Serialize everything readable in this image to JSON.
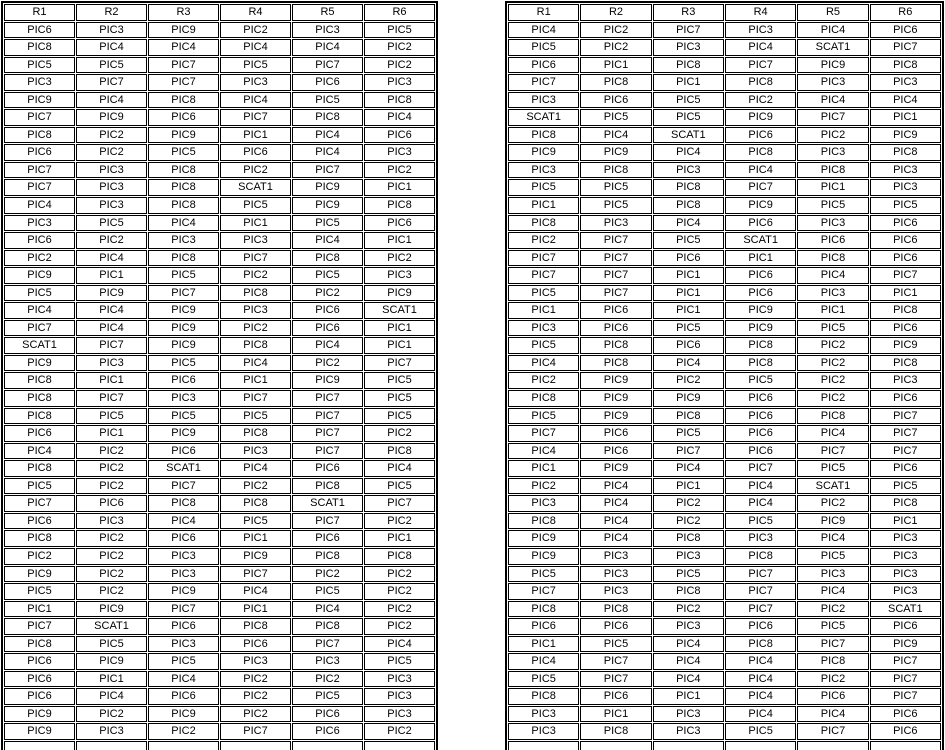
{
  "app": {
    "background_color": "#ffffff",
    "grid_border_color": "#000000",
    "text_color": "#000000"
  },
  "tables": [
    {
      "id": "left-grid",
      "headers": [
        "R1",
        "R2",
        "R3",
        "R4",
        "R5",
        "R6"
      ],
      "rows": [
        [
          "PIC6",
          "PIC3",
          "PIC9",
          "PIC2",
          "PIC3",
          "PIC5"
        ],
        [
          "PIC8",
          "PIC4",
          "PIC4",
          "PIC4",
          "PIC4",
          "PIC2"
        ],
        [
          "PIC5",
          "PIC5",
          "PIC7",
          "PIC5",
          "PIC7",
          "PIC2"
        ],
        [
          "PIC3",
          "PIC7",
          "PIC7",
          "PIC3",
          "PIC6",
          "PIC3"
        ],
        [
          "PIC9",
          "PIC4",
          "PIC8",
          "PIC4",
          "PIC5",
          "PIC8"
        ],
        [
          "PIC7",
          "PIC9",
          "PIC6",
          "PIC7",
          "PIC8",
          "PIC4"
        ],
        [
          "PIC8",
          "PIC2",
          "PIC9",
          "PIC1",
          "PIC4",
          "PIC6"
        ],
        [
          "PIC6",
          "PIC2",
          "PIC5",
          "PIC6",
          "PIC4",
          "PIC3"
        ],
        [
          "PIC7",
          "PIC3",
          "PIC8",
          "PIC2",
          "PIC7",
          "PIC2"
        ],
        [
          "PIC7",
          "PIC3",
          "PIC8",
          "SCAT1",
          "PIC9",
          "PIC1"
        ],
        [
          "PIC4",
          "PIC3",
          "PIC8",
          "PIC5",
          "PIC9",
          "PIC8"
        ],
        [
          "PIC3",
          "PIC5",
          "PIC4",
          "PIC1",
          "PIC5",
          "PIC6"
        ],
        [
          "PIC6",
          "PIC2",
          "PIC3",
          "PIC3",
          "PIC4",
          "PIC1"
        ],
        [
          "PIC2",
          "PIC4",
          "PIC8",
          "PIC7",
          "PIC8",
          "PIC2"
        ],
        [
          "PIC9",
          "PIC1",
          "PIC5",
          "PIC2",
          "PIC5",
          "PIC3"
        ],
        [
          "PIC5",
          "PIC9",
          "PIC7",
          "PIC8",
          "PIC2",
          "PIC9"
        ],
        [
          "PIC4",
          "PIC4",
          "PIC9",
          "PIC3",
          "PIC6",
          "SCAT1"
        ],
        [
          "PIC7",
          "PIC4",
          "PIC9",
          "PIC2",
          "PIC6",
          "PIC1"
        ],
        [
          "SCAT1",
          "PIC7",
          "PIC9",
          "PIC8",
          "PIC4",
          "PIC1"
        ],
        [
          "PIC9",
          "PIC3",
          "PIC5",
          "PIC4",
          "PIC2",
          "PIC7"
        ],
        [
          "PIC8",
          "PIC1",
          "PIC6",
          "PIC1",
          "PIC9",
          "PIC5"
        ],
        [
          "PIC8",
          "PIC7",
          "PIC3",
          "PIC7",
          "PIC7",
          "PIC5"
        ],
        [
          "PIC8",
          "PIC5",
          "PIC5",
          "PIC5",
          "PIC7",
          "PIC5"
        ],
        [
          "PIC6",
          "PIC1",
          "PIC9",
          "PIC8",
          "PIC7",
          "PIC2"
        ],
        [
          "PIC4",
          "PIC2",
          "PIC6",
          "PIC3",
          "PIC7",
          "PIC8"
        ],
        [
          "PIC8",
          "PIC2",
          "SCAT1",
          "PIC4",
          "PIC6",
          "PIC4"
        ],
        [
          "PIC5",
          "PIC2",
          "PIC7",
          "PIC2",
          "PIC8",
          "PIC5"
        ],
        [
          "PIC7",
          "PIC6",
          "PIC8",
          "PIC8",
          "SCAT1",
          "PIC7"
        ],
        [
          "PIC6",
          "PIC3",
          "PIC4",
          "PIC5",
          "PIC7",
          "PIC2"
        ],
        [
          "PIC8",
          "PIC2",
          "PIC6",
          "PIC1",
          "PIC6",
          "PIC1"
        ],
        [
          "PIC2",
          "PIC2",
          "PIC3",
          "PIC9",
          "PIC8",
          "PIC8"
        ],
        [
          "PIC9",
          "PIC2",
          "PIC3",
          "PIC7",
          "PIC2",
          "PIC2"
        ],
        [
          "PIC5",
          "PIC2",
          "PIC9",
          "PIC4",
          "PIC5",
          "PIC2"
        ],
        [
          "PIC1",
          "PIC9",
          "PIC7",
          "PIC1",
          "PIC4",
          "PIC2"
        ],
        [
          "PIC7",
          "SCAT1",
          "PIC6",
          "PIC8",
          "PIC8",
          "PIC2"
        ],
        [
          "PIC8",
          "PIC5",
          "PIC3",
          "PIC6",
          "PIC7",
          "PIC4"
        ],
        [
          "PIC6",
          "PIC9",
          "PIC5",
          "PIC3",
          "PIC3",
          "PIC5"
        ],
        [
          "PIC6",
          "PIC1",
          "PIC4",
          "PIC2",
          "PIC2",
          "PIC3"
        ],
        [
          "PIC6",
          "PIC4",
          "PIC6",
          "PIC2",
          "PIC5",
          "PIC3"
        ],
        [
          "PIC9",
          "PIC2",
          "PIC9",
          "PIC2",
          "PIC6",
          "PIC3"
        ],
        [
          "PIC9",
          "PIC3",
          "PIC2",
          "PIC7",
          "PIC6",
          "PIC2"
        ]
      ],
      "partial_next_row_visible": true
    },
    {
      "id": "right-grid",
      "headers": [
        "R1",
        "R2",
        "R3",
        "R4",
        "R5",
        "R6"
      ],
      "rows": [
        [
          "PIC4",
          "PIC2",
          "PIC7",
          "PIC3",
          "PIC4",
          "PIC6"
        ],
        [
          "PIC5",
          "PIC2",
          "PIC3",
          "PIC4",
          "SCAT1",
          "PIC7"
        ],
        [
          "PIC6",
          "PIC1",
          "PIC8",
          "PIC7",
          "PIC9",
          "PIC8"
        ],
        [
          "PIC7",
          "PIC8",
          "PIC1",
          "PIC8",
          "PIC3",
          "PIC3"
        ],
        [
          "PIC3",
          "PIC6",
          "PIC5",
          "PIC2",
          "PIC4",
          "PIC4"
        ],
        [
          "SCAT1",
          "PIC5",
          "PIC5",
          "PIC9",
          "PIC7",
          "PIC1"
        ],
        [
          "PIC8",
          "PIC4",
          "SCAT1",
          "PIC6",
          "PIC2",
          "PIC9"
        ],
        [
          "PIC9",
          "PIC9",
          "PIC4",
          "PIC8",
          "PIC3",
          "PIC8"
        ],
        [
          "PIC3",
          "PIC8",
          "PIC3",
          "PIC4",
          "PIC8",
          "PIC3"
        ],
        [
          "PIC5",
          "PIC5",
          "PIC8",
          "PIC7",
          "PIC1",
          "PIC3"
        ],
        [
          "PIC1",
          "PIC5",
          "PIC8",
          "PIC9",
          "PIC5",
          "PIC5"
        ],
        [
          "PIC8",
          "PIC3",
          "PIC4",
          "PIC6",
          "PIC3",
          "PIC6"
        ],
        [
          "PIC2",
          "PIC7",
          "PIC5",
          "SCAT1",
          "PIC6",
          "PIC6"
        ],
        [
          "PIC7",
          "PIC7",
          "PIC6",
          "PIC1",
          "PIC8",
          "PIC6"
        ],
        [
          "PIC7",
          "PIC7",
          "PIC1",
          "PIC6",
          "PIC4",
          "PIC7"
        ],
        [
          "PIC5",
          "PIC7",
          "PIC1",
          "PIC6",
          "PIC3",
          "PIC1"
        ],
        [
          "PIC1",
          "PIC6",
          "PIC1",
          "PIC9",
          "PIC1",
          "PIC8"
        ],
        [
          "PIC3",
          "PIC6",
          "PIC5",
          "PIC9",
          "PIC5",
          "PIC6"
        ],
        [
          "PIC5",
          "PIC8",
          "PIC6",
          "PIC8",
          "PIC2",
          "PIC9"
        ],
        [
          "PIC4",
          "PIC8",
          "PIC4",
          "PIC8",
          "PIC2",
          "PIC8"
        ],
        [
          "PIC2",
          "PIC9",
          "PIC2",
          "PIC5",
          "PIC2",
          "PIC3"
        ],
        [
          "PIC8",
          "PIC9",
          "PIC9",
          "PIC6",
          "PIC2",
          "PIC6"
        ],
        [
          "PIC5",
          "PIC9",
          "PIC8",
          "PIC6",
          "PIC8",
          "PIC7"
        ],
        [
          "PIC7",
          "PIC6",
          "PIC5",
          "PIC6",
          "PIC4",
          "PIC7"
        ],
        [
          "PIC4",
          "PIC6",
          "PIC7",
          "PIC6",
          "PIC7",
          "PIC7"
        ],
        [
          "PIC1",
          "PIC9",
          "PIC4",
          "PIC7",
          "PIC5",
          "PIC6"
        ],
        [
          "PIC2",
          "PIC4",
          "PIC1",
          "PIC4",
          "SCAT1",
          "PIC5"
        ],
        [
          "PIC3",
          "PIC4",
          "PIC2",
          "PIC4",
          "PIC2",
          "PIC8"
        ],
        [
          "PIC8",
          "PIC4",
          "PIC2",
          "PIC5",
          "PIC9",
          "PIC1"
        ],
        [
          "PIC9",
          "PIC4",
          "PIC8",
          "PIC3",
          "PIC4",
          "PIC3"
        ],
        [
          "PIC9",
          "PIC3",
          "PIC3",
          "PIC8",
          "PIC5",
          "PIC3"
        ],
        [
          "PIC5",
          "PIC3",
          "PIC5",
          "PIC7",
          "PIC3",
          "PIC3"
        ],
        [
          "PIC7",
          "PIC3",
          "PIC8",
          "PIC7",
          "PIC4",
          "PIC3"
        ],
        [
          "PIC8",
          "PIC8",
          "PIC2",
          "PIC7",
          "PIC2",
          "SCAT1"
        ],
        [
          "PIC6",
          "PIC6",
          "PIC3",
          "PIC6",
          "PIC5",
          "PIC6"
        ],
        [
          "PIC1",
          "PIC5",
          "PIC4",
          "PIC8",
          "PIC7",
          "PIC9"
        ],
        [
          "PIC4",
          "PIC7",
          "PIC4",
          "PIC4",
          "PIC8",
          "PIC7"
        ],
        [
          "PIC5",
          "PIC7",
          "PIC4",
          "PIC4",
          "PIC2",
          "PIC7"
        ],
        [
          "PIC8",
          "PIC6",
          "PIC1",
          "PIC4",
          "PIC6",
          "PIC7"
        ],
        [
          "PIC3",
          "PIC1",
          "PIC3",
          "PIC4",
          "PIC4",
          "PIC6"
        ],
        [
          "PIC3",
          "PIC8",
          "PIC3",
          "PIC5",
          "PIC7",
          "PIC6"
        ]
      ],
      "partial_next_row_visible": true
    }
  ]
}
